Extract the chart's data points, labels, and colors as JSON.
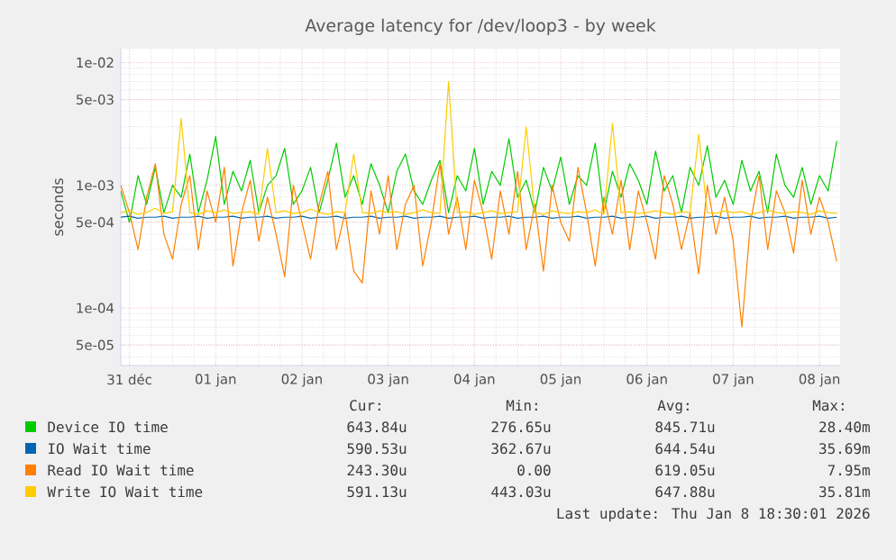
{
  "chart_data": {
    "type": "line",
    "title": "Average latency for /dev/loop3 - by week",
    "ylabel": "seconds",
    "log": "y",
    "grid": true,
    "legend": "bottom",
    "marker": "none",
    "line_style": "solid",
    "xlim": [
      "2025-12-30T21:36",
      "2026-01-08T05:45"
    ],
    "ylim": [
      3.4e-05,
      0.013
    ],
    "xticks": [
      {
        "value": "2025-12-31",
        "label": "31 déc"
      },
      {
        "value": "2026-01-01",
        "label": "01 jan"
      },
      {
        "value": "2026-01-02",
        "label": "02 jan"
      },
      {
        "value": "2026-01-03",
        "label": "03 jan"
      },
      {
        "value": "2026-01-04",
        "label": "04 jan"
      },
      {
        "value": "2026-01-05",
        "label": "05 jan"
      },
      {
        "value": "2026-01-06",
        "label": "06 jan"
      },
      {
        "value": "2026-01-07",
        "label": "07 jan"
      },
      {
        "value": "2026-01-08",
        "label": "08 jan"
      }
    ],
    "yticks": [
      {
        "value": 5e-05,
        "label": "5e-05"
      },
      {
        "value": 0.0001,
        "label": "1e-04"
      },
      {
        "value": 0.0005,
        "label": "5e-04"
      },
      {
        "value": 0.001,
        "label": "1e-03"
      },
      {
        "value": 0.005,
        "label": "5e-03"
      },
      {
        "value": 0.01,
        "label": "1e-02"
      }
    ],
    "x": [
      "2025-12-30T21:36",
      "2025-12-31T00:00",
      "2025-12-31T02:24",
      "2025-12-31T04:48",
      "2025-12-31T07:12",
      "2025-12-31T09:36",
      "2025-12-31T12:00",
      "2025-12-31T14:24",
      "2025-12-31T16:48",
      "2025-12-31T19:12",
      "2025-12-31T21:36",
      "2026-01-01T00:00",
      "2026-01-01T02:24",
      "2026-01-01T04:48",
      "2026-01-01T07:12",
      "2026-01-01T09:36",
      "2026-01-01T12:00",
      "2026-01-01T14:24",
      "2026-01-01T16:48",
      "2026-01-01T19:12",
      "2026-01-01T21:36",
      "2026-01-02T00:00",
      "2026-01-02T02:24",
      "2026-01-02T04:48",
      "2026-01-02T07:12",
      "2026-01-02T09:36",
      "2026-01-02T12:00",
      "2026-01-02T14:24",
      "2026-01-02T16:48",
      "2026-01-02T19:12",
      "2026-01-02T21:36",
      "2026-01-03T00:00",
      "2026-01-03T02:24",
      "2026-01-03T04:48",
      "2026-01-03T07:12",
      "2026-01-03T09:36",
      "2026-01-03T12:00",
      "2026-01-03T14:24",
      "2026-01-03T16:48",
      "2026-01-03T19:12",
      "2026-01-03T21:36",
      "2026-01-04T00:00",
      "2026-01-04T02:24",
      "2026-01-04T04:48",
      "2026-01-04T07:12",
      "2026-01-04T09:36",
      "2026-01-04T12:00",
      "2026-01-04T14:24",
      "2026-01-04T16:48",
      "2026-01-04T19:12",
      "2026-01-04T21:36",
      "2026-01-05T00:00",
      "2026-01-05T02:24",
      "2026-01-05T04:48",
      "2026-01-05T07:12",
      "2026-01-05T09:36",
      "2026-01-05T12:00",
      "2026-01-05T14:24",
      "2026-01-05T16:48",
      "2026-01-05T19:12",
      "2026-01-05T21:36",
      "2026-01-06T00:00",
      "2026-01-06T02:24",
      "2026-01-06T04:48",
      "2026-01-06T07:12",
      "2026-01-06T09:36",
      "2026-01-06T12:00",
      "2026-01-06T14:24",
      "2026-01-06T16:48",
      "2026-01-06T19:12",
      "2026-01-06T21:36",
      "2026-01-07T00:00",
      "2026-01-07T02:24",
      "2026-01-07T04:48",
      "2026-01-07T07:12",
      "2026-01-07T09:36",
      "2026-01-07T12:00",
      "2026-01-07T14:24",
      "2026-01-07T16:48",
      "2026-01-07T19:12",
      "2026-01-07T21:36",
      "2026-01-08T00:00",
      "2026-01-08T02:24",
      "2026-01-08T04:48"
    ],
    "series": [
      {
        "name": "Device IO time",
        "color": "#00cc00",
        "values": [
          0.0009,
          0.0005,
          0.0012,
          0.0007,
          0.0014,
          0.0006,
          0.001,
          0.0008,
          0.0018,
          0.0006,
          0.0011,
          0.0025,
          0.0007,
          0.0013,
          0.0009,
          0.0016,
          0.0006,
          0.001,
          0.0012,
          0.002,
          0.0007,
          0.0009,
          0.0014,
          0.0006,
          0.0011,
          0.0022,
          0.0008,
          0.0012,
          0.0007,
          0.0015,
          0.001,
          0.0006,
          0.0013,
          0.0018,
          0.0009,
          0.0007,
          0.0011,
          0.0016,
          0.0006,
          0.0012,
          0.0009,
          0.002,
          0.0007,
          0.0013,
          0.001,
          0.0024,
          0.0008,
          0.0011,
          0.0006,
          0.0014,
          0.0009,
          0.0017,
          0.0007,
          0.0012,
          0.001,
          0.0022,
          0.0006,
          0.0013,
          0.0008,
          0.0015,
          0.0011,
          0.0007,
          0.0019,
          0.0009,
          0.0012,
          0.0006,
          0.0014,
          0.001,
          0.0021,
          0.0008,
          0.0011,
          0.0007,
          0.0016,
          0.0009,
          0.0013,
          0.0006,
          0.0018,
          0.001,
          0.0008,
          0.0014,
          0.0007,
          0.0012,
          0.0009,
          0.0023
        ]
      },
      {
        "name": "IO Wait time",
        "color": "#0066b3",
        "values": [
          0.00055,
          0.00056,
          0.00054,
          0.00055,
          0.00055,
          0.00056,
          0.00054,
          0.00055,
          0.00055,
          0.00056,
          0.00054,
          0.00055,
          0.00055,
          0.00056,
          0.00054,
          0.00055,
          0.00055,
          0.00056,
          0.00054,
          0.00055,
          0.00055,
          0.00056,
          0.00054,
          0.00055,
          0.00055,
          0.00056,
          0.00054,
          0.00055,
          0.00055,
          0.00056,
          0.00054,
          0.00055,
          0.00055,
          0.00056,
          0.00054,
          0.00055,
          0.00055,
          0.00056,
          0.00054,
          0.00055,
          0.00055,
          0.00056,
          0.00054,
          0.00055,
          0.00055,
          0.00056,
          0.00054,
          0.00055,
          0.00055,
          0.00056,
          0.00054,
          0.00055,
          0.00055,
          0.00056,
          0.00054,
          0.00055,
          0.00055,
          0.00056,
          0.00054,
          0.00055,
          0.00055,
          0.00056,
          0.00054,
          0.00055,
          0.00055,
          0.00056,
          0.00054,
          0.00055,
          0.00055,
          0.00056,
          0.00054,
          0.00055,
          0.00055,
          0.00056,
          0.00054,
          0.00055,
          0.00055,
          0.00056,
          0.00054,
          0.00055,
          0.00055,
          0.00056,
          0.00054,
          0.00055
        ]
      },
      {
        "name": "Read IO Wait time",
        "color": "#ff8000",
        "values": [
          0.001,
          0.0006,
          0.0003,
          0.0008,
          0.0015,
          0.0004,
          0.00025,
          0.0007,
          0.0012,
          0.0003,
          0.0009,
          0.0005,
          0.0014,
          0.00022,
          0.0006,
          0.0011,
          0.00035,
          0.0008,
          0.0004,
          0.00018,
          0.001,
          0.0005,
          0.00025,
          0.0007,
          0.0013,
          0.0003,
          0.0006,
          0.0002,
          0.00016,
          0.0009,
          0.0004,
          0.0012,
          0.0003,
          0.0007,
          0.001,
          0.00022,
          0.0005,
          0.0015,
          0.0004,
          0.0008,
          0.0003,
          0.0011,
          0.0006,
          0.00025,
          0.0009,
          0.0004,
          0.0013,
          0.0003,
          0.0007,
          0.0002,
          0.001,
          0.0005,
          0.00035,
          0.0014,
          0.0006,
          0.00022,
          0.0008,
          0.0004,
          0.0011,
          0.0003,
          0.0009,
          0.0005,
          0.00025,
          0.0012,
          0.0007,
          0.0003,
          0.0006,
          0.00019,
          0.001,
          0.0004,
          0.0008,
          0.00035,
          7e-05,
          0.0005,
          0.0012,
          0.0003,
          0.0009,
          0.0006,
          0.00028,
          0.0011,
          0.0004,
          0.0008,
          0.0005,
          0.00024
        ]
      },
      {
        "name": "Write IO Wait time",
        "color": "#ffcc00",
        "values": [
          0.0006,
          0.00062,
          0.00058,
          0.0006,
          0.00065,
          0.00059,
          0.00061,
          0.0035,
          0.0006,
          0.00058,
          0.00062,
          0.0006,
          0.00063,
          0.00059,
          0.0006,
          0.00061,
          0.00058,
          0.002,
          0.0006,
          0.00062,
          0.00059,
          0.0006,
          0.00064,
          0.0006,
          0.00058,
          0.00061,
          0.0006,
          0.0018,
          0.0006,
          0.00059,
          0.00062,
          0.0006,
          0.00061,
          0.00058,
          0.0006,
          0.00063,
          0.0006,
          0.00059,
          0.007,
          0.0006,
          0.00061,
          0.00058,
          0.0006,
          0.00062,
          0.00059,
          0.0006,
          0.00061,
          0.003,
          0.0006,
          0.00058,
          0.00062,
          0.0006,
          0.00059,
          0.00061,
          0.0006,
          0.00063,
          0.00058,
          0.0032,
          0.0006,
          0.00061,
          0.00059,
          0.0006,
          0.00062,
          0.0006,
          0.00058,
          0.00061,
          0.0006,
          0.0026,
          0.0006,
          0.00059,
          0.00062,
          0.0006,
          0.00061,
          0.00058,
          0.0006,
          0.00063,
          0.0006,
          0.00059,
          0.00061,
          0.0006,
          0.00058,
          0.00062,
          0.0006,
          0.00059
        ]
      }
    ],
    "annotations": [
      "Cur:",
      "Min:",
      "Avg:",
      "Max:",
      "643.84u",
      "276.65u",
      "845.71u",
      "28.40m",
      "590.53u",
      "362.67u",
      "644.54u",
      "35.69m",
      "243.30u",
      "0.00",
      "619.05u",
      "7.95m",
      "591.13u",
      "443.03u",
      "647.88u",
      "35.81m",
      "Last update: Thu Jan  8 18:30:01 2026"
    ]
  }
}
